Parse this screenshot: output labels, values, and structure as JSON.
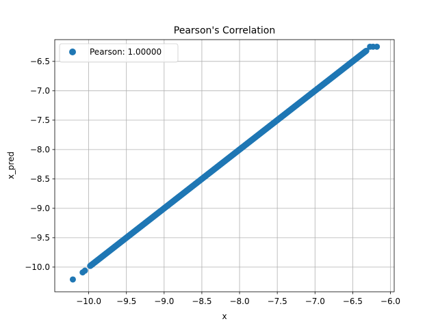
{
  "chart_data": {
    "type": "scatter",
    "title": "Pearson's Correlation",
    "xlabel": "x",
    "ylabel": "x_pred",
    "xlim": [
      -10.45,
      -5.95
    ],
    "ylim": [
      -10.42,
      -6.13
    ],
    "x_ticks": [
      -10.0,
      -9.5,
      -9.0,
      -8.5,
      -8.0,
      -7.5,
      -7.0,
      -6.5,
      -6.0
    ],
    "x_tick_labels": [
      "−10.0",
      "−9.5",
      "−9.0",
      "−8.5",
      "−8.0",
      "−7.5",
      "−7.0",
      "−6.5",
      "−6.0"
    ],
    "y_ticks": [
      -10.0,
      -9.5,
      -9.0,
      -8.5,
      -8.0,
      -7.5,
      -7.0,
      -6.5
    ],
    "y_tick_labels": [
      "−10.0",
      "−9.5",
      "−9.0",
      "−8.5",
      "−8.0",
      "−7.5",
      "−7.0",
      "−6.5"
    ],
    "grid": true,
    "legend_position": "top-left",
    "series": [
      {
        "name": "Pearson: 1.00000",
        "color": "#1f77b4",
        "x_range": [
          -9.98,
          -6.32
        ],
        "outliers": [
          [
            -10.21,
            -10.21
          ],
          [
            -10.08,
            -10.09
          ],
          [
            -10.05,
            -10.06
          ],
          [
            -6.27,
            -6.25
          ],
          [
            -6.23,
            -6.25
          ],
          [
            -6.18,
            -6.25
          ]
        ]
      }
    ]
  }
}
